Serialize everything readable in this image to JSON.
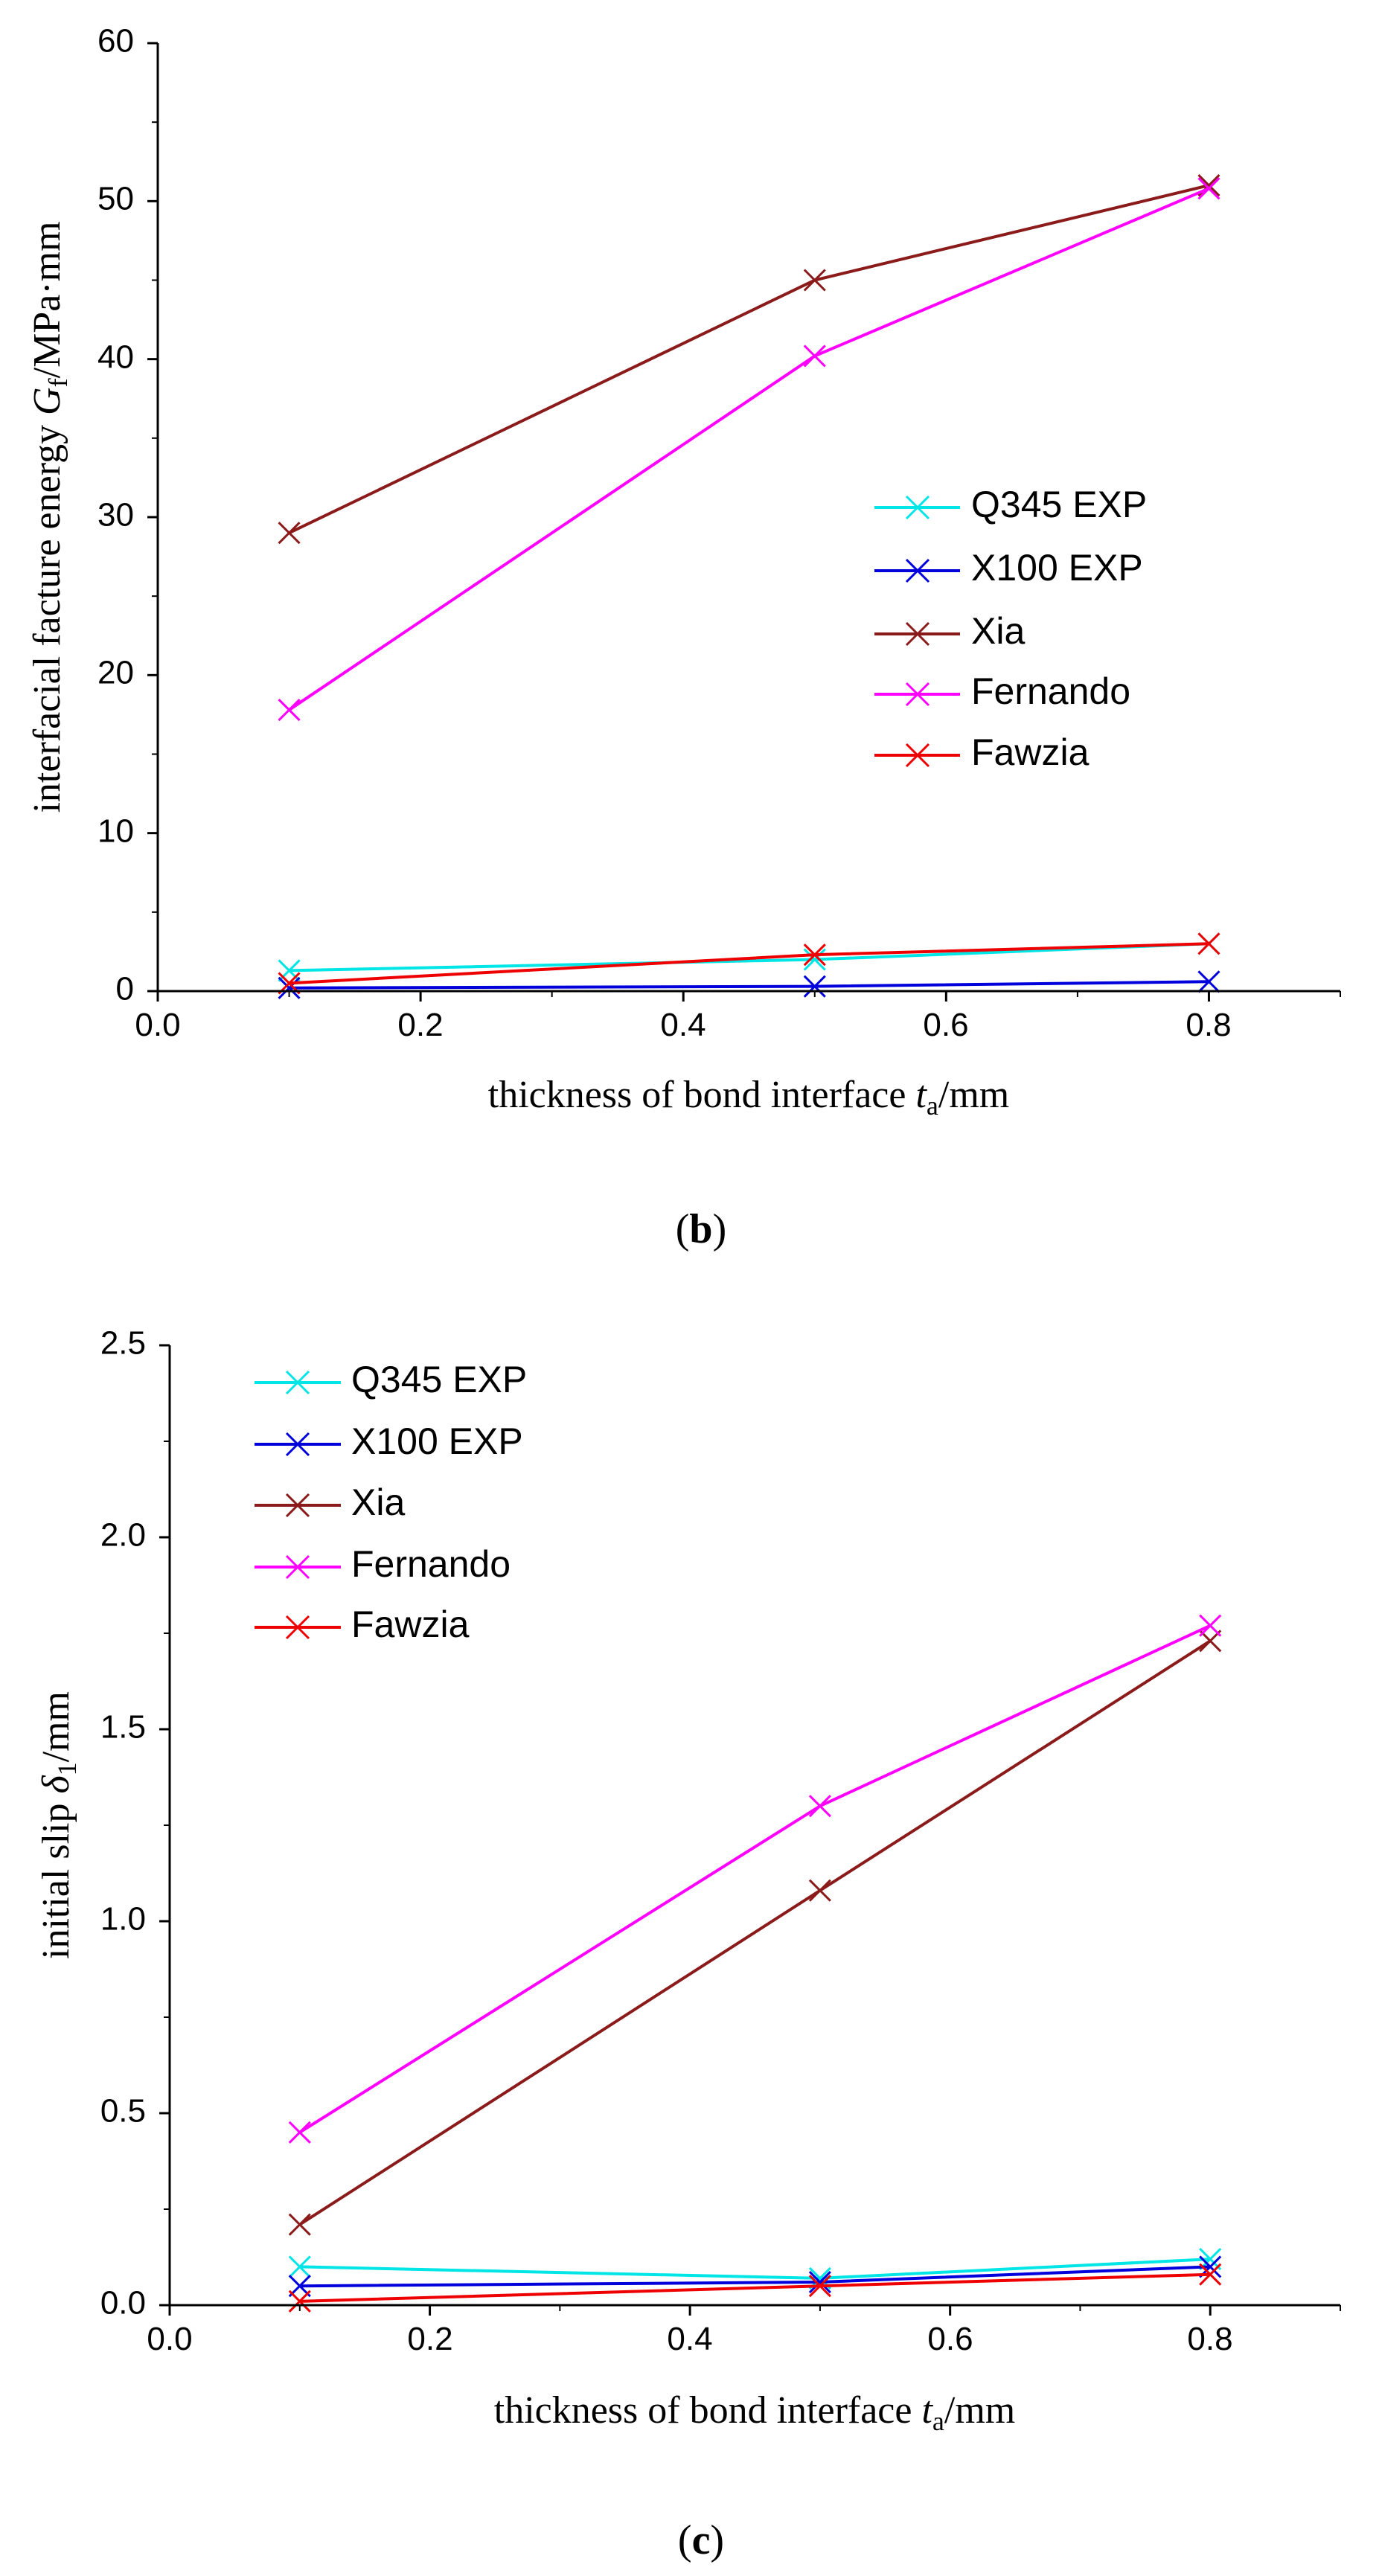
{
  "chart_data": [
    {
      "type": "line",
      "panel_label": "b",
      "xlabel": "thickness of bond interface",
      "xlabel_symbol": "t",
      "xlabel_sub": "a",
      "xlabel_unit": "/mm",
      "ylabel": "interfacial facture energy",
      "ylabel_symbol": "G",
      "ylabel_sub": "f",
      "ylabel_unit": "/MPa·mm",
      "xlim": [
        0.0,
        0.9
      ],
      "ylim": [
        0,
        60
      ],
      "xticks": [
        "0.0",
        "0.2",
        "0.4",
        "0.6",
        "0.8"
      ],
      "yticks": [
        "0",
        "10",
        "20",
        "30",
        "40",
        "50",
        "60"
      ],
      "legend_position": "center-right",
      "x": [
        0.1,
        0.5,
        0.8
      ],
      "series": [
        {
          "name": "Q345 EXP",
          "color": "#00e5e5",
          "values": [
            1.3,
            2.0,
            3.0
          ]
        },
        {
          "name": "X100 EXP",
          "color": "#0000dd",
          "values": [
            0.2,
            0.3,
            0.6
          ]
        },
        {
          "name": "Xia",
          "color": "#8b1a1a",
          "values": [
            29.0,
            45.0,
            51.0
          ]
        },
        {
          "name": "Fernando",
          "color": "#ff00ff",
          "values": [
            17.8,
            40.2,
            50.8
          ]
        },
        {
          "name": "Fawzia",
          "color": "#ee0000",
          "values": [
            0.5,
            2.3,
            3.0
          ]
        }
      ]
    },
    {
      "type": "line",
      "panel_label": "c",
      "xlabel": "thickness of bond interface",
      "xlabel_symbol": "t",
      "xlabel_sub": "a",
      "xlabel_unit": "/mm",
      "ylabel": "initial slip",
      "ylabel_symbol": "δ",
      "ylabel_sub": "1",
      "ylabel_unit": "/mm",
      "xlim": [
        0.0,
        0.9
      ],
      "ylim": [
        0.0,
        2.5
      ],
      "xticks": [
        "0.0",
        "0.2",
        "0.4",
        "0.6",
        "0.8"
      ],
      "yticks": [
        "0.0",
        "0.5",
        "1.0",
        "1.5",
        "2.0",
        "2.5"
      ],
      "legend_position": "top-left",
      "x": [
        0.1,
        0.5,
        0.8
      ],
      "series": [
        {
          "name": "Q345 EXP",
          "color": "#00e5e5",
          "values": [
            0.1,
            0.07,
            0.12
          ]
        },
        {
          "name": "X100 EXP",
          "color": "#0000dd",
          "values": [
            0.05,
            0.06,
            0.1
          ]
        },
        {
          "name": "Xia",
          "color": "#8b1a1a",
          "values": [
            0.21,
            1.08,
            1.73
          ]
        },
        {
          "name": "Fernando",
          "color": "#ff00ff",
          "values": [
            0.45,
            1.3,
            1.77
          ]
        },
        {
          "name": "Fawzia",
          "color": "#ee0000",
          "values": [
            0.01,
            0.05,
            0.08
          ]
        }
      ]
    }
  ]
}
